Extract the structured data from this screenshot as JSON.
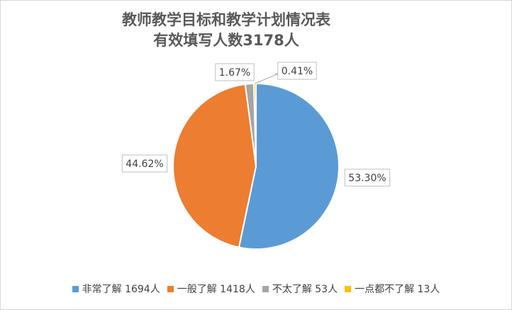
{
  "chart_data": {
    "type": "pie",
    "title": [
      "教师教学目标和教学计划情况表",
      "有效填写人数3178人"
    ],
    "categories": [
      "非常了解 1694人",
      "一般了解 1418人",
      "不太了解 53人",
      "一点都不了解 13人"
    ],
    "values": [
      53.3,
      44.62,
      1.67,
      0.41
    ],
    "value_labels": [
      "53.30%",
      "44.62%",
      "1.67%",
      "0.41%"
    ],
    "colors": [
      "#5b9bd5",
      "#ed7d31",
      "#a5a5a5",
      "#ffc000"
    ],
    "legend": "bottom"
  }
}
